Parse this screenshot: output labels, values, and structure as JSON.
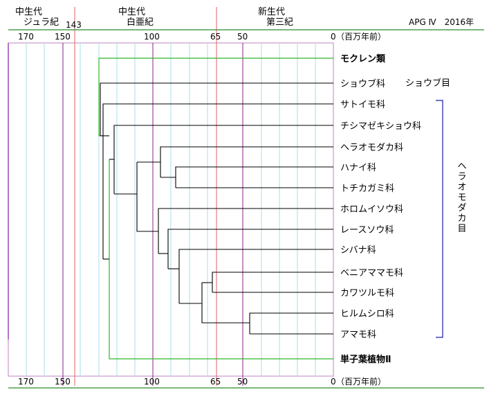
{
  "header": {
    "eras": [
      {
        "era": "中生代",
        "period": "ジュラ紀"
      },
      {
        "era": "中生代",
        "period": "白亜紀"
      },
      {
        "era": "新生代",
        "period": "第三紀"
      }
    ],
    "boundary_label": "143",
    "system_label": "APG Ⅳ　2016年"
  },
  "axis": {
    "ticks": [
      "170",
      "150",
      "100",
      "65",
      "50",
      "0"
    ],
    "unit": "（百万年前）"
  },
  "taxa": {
    "outgroup_top": "モクレン類",
    "leaves": [
      "ショウブ科",
      "サトイモ科",
      "チシマゼキショウ科",
      "ヘラオモダカ科",
      "ハナイ科",
      "トチカガミ科",
      "ホロムイソウ科",
      "レースソウ科",
      "シバナ科",
      "ベニアママモ科",
      "カワツルモ科",
      "ヒルムシロ科",
      "アマモ科"
    ],
    "outgroup_bottom": "単子葉植物Ⅱ"
  },
  "orders": {
    "acorales": "ショウブ目",
    "alismatales": "ヘラオモダカ目"
  },
  "colors": {
    "green": "#2ab82a",
    "blue": "#1a1aaa",
    "purple": "#882288",
    "red": "#e06060",
    "cyan": "#a8dce8"
  }
}
